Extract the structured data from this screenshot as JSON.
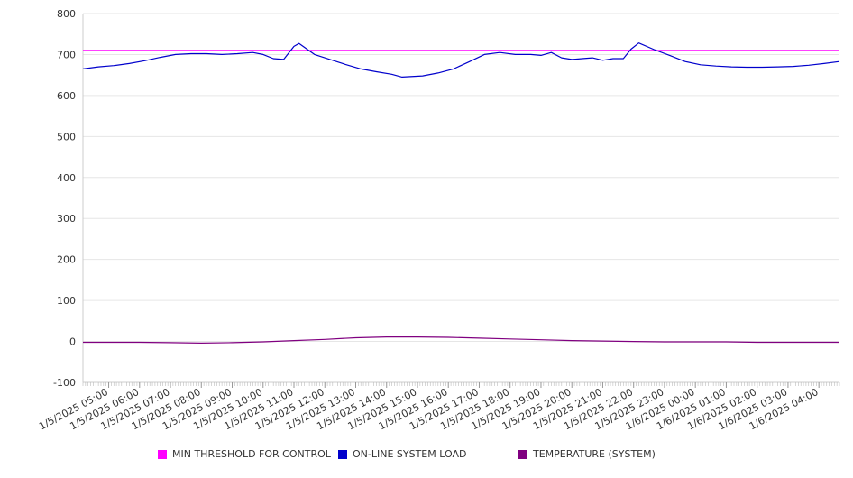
{
  "chart_data": {
    "type": "line",
    "title": "",
    "xlabel": "",
    "ylabel": "",
    "ylim": [
      -100,
      800
    ],
    "yticks": [
      -100,
      0,
      100,
      200,
      300,
      400,
      500,
      600,
      700,
      800
    ],
    "xrange": [
      "1/5/2025 04:10",
      "1/6/2025 04:40"
    ],
    "xtick_labels": [
      "1/5/2025 05:00",
      "1/5/2025 06:00",
      "1/5/2025 07:00",
      "1/5/2025 08:00",
      "1/5/2025 09:00",
      "1/5/2025 10:00",
      "1/5/2025 11:00",
      "1/5/2025 12:00",
      "1/5/2025 13:00",
      "1/5/2025 14:00",
      "1/5/2025 15:00",
      "1/5/2025 16:00",
      "1/5/2025 17:00",
      "1/5/2025 18:00",
      "1/5/2025 19:00",
      "1/5/2025 20:00",
      "1/5/2025 21:00",
      "1/5/2025 22:00",
      "1/5/2025 23:00",
      "1/6/2025 00:00",
      "1/6/2025 01:00",
      "1/6/2025 02:00",
      "1/6/2025 03:00",
      "1/6/2025 04:00"
    ],
    "grid": true,
    "legend_position": "bottom",
    "series": [
      {
        "name": "MIN THRESHOLD FOR CONTROL",
        "color": "#ff00ff",
        "x": [
          "1/5/2025 04:10",
          "1/6/2025 04:40"
        ],
        "values": [
          710,
          710
        ]
      },
      {
        "name": "ON-LINE SYSTEM LOAD",
        "color": "#0000cc",
        "x": [
          "1/5/2025 04:10",
          "1/5/2025 04:40",
          "1/5/2025 05:10",
          "1/5/2025 05:40",
          "1/5/2025 06:10",
          "1/5/2025 06:40",
          "1/5/2025 07:10",
          "1/5/2025 07:40",
          "1/5/2025 08:10",
          "1/5/2025 08:40",
          "1/5/2025 09:10",
          "1/5/2025 09:40",
          "1/5/2025 10:00",
          "1/5/2025 10:20",
          "1/5/2025 10:40",
          "1/5/2025 11:00",
          "1/5/2025 11:10",
          "1/5/2025 11:40",
          "1/5/2025 12:10",
          "1/5/2025 12:40",
          "1/5/2025 13:10",
          "1/5/2025 13:40",
          "1/5/2025 14:10",
          "1/5/2025 14:30",
          "1/5/2025 15:10",
          "1/5/2025 15:40",
          "1/5/2025 16:10",
          "1/5/2025 16:40",
          "1/5/2025 17:10",
          "1/5/2025 17:40",
          "1/5/2025 18:10",
          "1/5/2025 18:40",
          "1/5/2025 19:00",
          "1/5/2025 19:20",
          "1/5/2025 19:40",
          "1/5/2025 20:00",
          "1/5/2025 20:20",
          "1/5/2025 20:40",
          "1/5/2025 21:00",
          "1/5/2025 21:20",
          "1/5/2025 21:40",
          "1/5/2025 21:55",
          "1/5/2025 22:10",
          "1/5/2025 22:40",
          "1/5/2025 23:10",
          "1/5/2025 23:40",
          "1/6/2025 00:10",
          "1/6/2025 00:40",
          "1/6/2025 01:10",
          "1/6/2025 01:40",
          "1/6/2025 02:10",
          "1/6/2025 02:40",
          "1/6/2025 03:10",
          "1/6/2025 03:40",
          "1/6/2025 04:10",
          "1/6/2025 04:40"
        ],
        "values": [
          665,
          670,
          673,
          678,
          685,
          693,
          700,
          702,
          702,
          700,
          702,
          705,
          700,
          690,
          688,
          720,
          727,
          700,
          688,
          676,
          665,
          658,
          652,
          645,
          648,
          655,
          665,
          682,
          700,
          705,
          700,
          700,
          698,
          705,
          692,
          688,
          690,
          692,
          686,
          690,
          690,
          713,
          728,
          712,
          698,
          683,
          675,
          672,
          670,
          669,
          669,
          670,
          671,
          674,
          678,
          683
        ]
      },
      {
        "name": "TEMPERATURE (SYSTEM)",
        "color": "#800080",
        "x": [
          "1/5/2025 04:10",
          "1/5/2025 06:00",
          "1/5/2025 07:00",
          "1/5/2025 08:00",
          "1/5/2025 09:00",
          "1/5/2025 10:00",
          "1/5/2025 11:00",
          "1/5/2025 12:00",
          "1/5/2025 13:00",
          "1/5/2025 14:00",
          "1/5/2025 15:00",
          "1/5/2025 16:00",
          "1/5/2025 17:00",
          "1/5/2025 18:00",
          "1/5/2025 19:00",
          "1/5/2025 20:00",
          "1/5/2025 21:00",
          "1/5/2025 22:00",
          "1/5/2025 23:00",
          "1/6/2025 00:00",
          "1/6/2025 01:00",
          "1/6/2025 02:00",
          "1/6/2025 03:00",
          "1/6/2025 04:40"
        ],
        "values": [
          -2,
          -2,
          -3,
          -4,
          -3,
          -1,
          2,
          5,
          9,
          11,
          11,
          10,
          8,
          6,
          4,
          2,
          1,
          0,
          -1,
          -1,
          -1,
          -2,
          -2,
          -2
        ]
      }
    ]
  }
}
